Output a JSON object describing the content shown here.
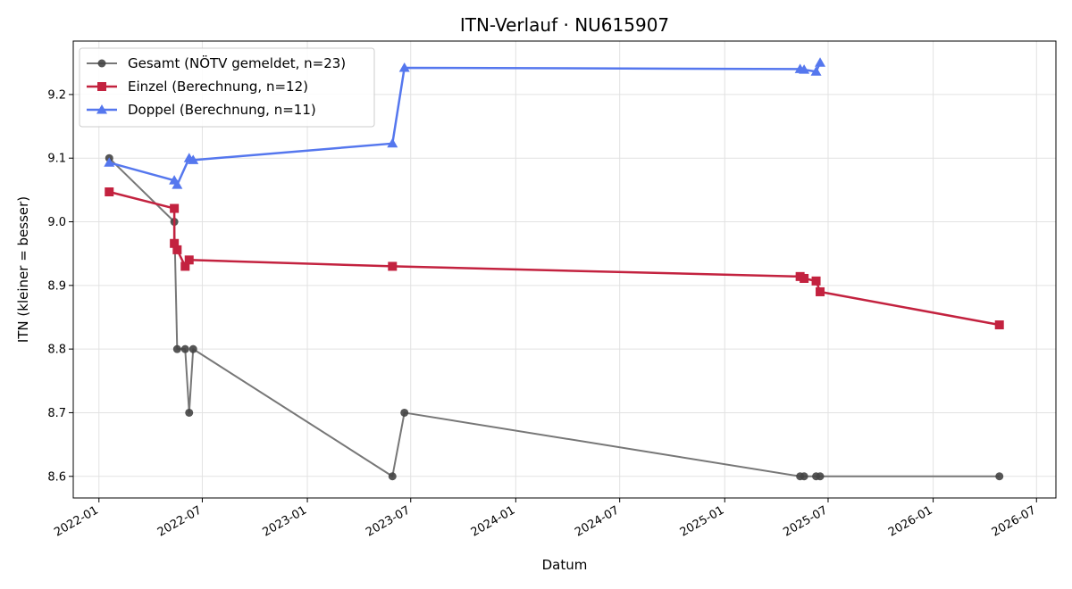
{
  "chart_data": {
    "type": "line",
    "title": "ITN-Verlauf · NU615907",
    "xlabel": "Datum",
    "ylabel": "ITN  (kleiner = besser)",
    "x_type": "date",
    "xlim": [
      "2021-11-17",
      "2026-08-04"
    ],
    "ylim": [
      8.566,
      9.284
    ],
    "x_ticks": [
      "2022-01",
      "2022-07",
      "2023-01",
      "2023-07",
      "2024-01",
      "2024-07",
      "2025-01",
      "2025-07",
      "2026-01",
      "2026-07"
    ],
    "y_ticks": [
      8.6,
      8.7,
      8.8,
      8.9,
      9.0,
      9.1,
      9.2
    ],
    "grid": true,
    "legend_position": "top-left",
    "series": [
      {
        "name": "Gesamt (NÖTV gemeldet, n=23)",
        "color": "#777777",
        "marker_color": "#444444",
        "marker": "circle",
        "points": [
          {
            "x": "2022-01-19",
            "y": 9.1
          },
          {
            "x": "2022-05-13",
            "y": 9.0
          },
          {
            "x": "2022-05-18",
            "y": 8.8
          },
          {
            "x": "2022-06-01",
            "y": 8.8
          },
          {
            "x": "2022-06-08",
            "y": 8.7
          },
          {
            "x": "2022-06-15",
            "y": 8.8
          },
          {
            "x": "2023-05-30",
            "y": 8.6
          },
          {
            "x": "2023-06-20",
            "y": 8.7
          },
          {
            "x": "2025-05-13",
            "y": 8.6
          },
          {
            "x": "2025-05-20",
            "y": 8.6
          },
          {
            "x": "2025-06-10",
            "y": 8.6
          },
          {
            "x": "2025-06-17",
            "y": 8.6
          },
          {
            "x": "2026-04-27",
            "y": 8.6
          }
        ]
      },
      {
        "name": "Einzel (Berechnung, n=12)",
        "color": "#c3223f",
        "marker_color": "#c3223f",
        "marker": "square",
        "points": [
          {
            "x": "2022-01-19",
            "y": 9.047
          },
          {
            "x": "2022-05-13",
            "y": 9.021
          },
          {
            "x": "2022-05-13",
            "y": 8.966
          },
          {
            "x": "2022-05-18",
            "y": 8.956
          },
          {
            "x": "2022-06-01",
            "y": 8.93
          },
          {
            "x": "2022-06-08",
            "y": 8.94
          },
          {
            "x": "2023-05-30",
            "y": 8.93
          },
          {
            "x": "2025-05-13",
            "y": 8.914
          },
          {
            "x": "2025-05-20",
            "y": 8.911
          },
          {
            "x": "2025-06-10",
            "y": 8.907
          },
          {
            "x": "2025-06-17",
            "y": 8.89
          },
          {
            "x": "2026-04-27",
            "y": 8.838
          }
        ]
      },
      {
        "name": "Doppel (Berechnung, n=11)",
        "color": "#5577ee",
        "marker_color": "#5577ee",
        "marker": "triangle",
        "points": [
          {
            "x": "2022-01-19",
            "y": 9.093
          },
          {
            "x": "2022-05-13",
            "y": 9.065
          },
          {
            "x": "2022-05-18",
            "y": 9.058
          },
          {
            "x": "2022-06-08",
            "y": 9.1
          },
          {
            "x": "2022-06-15",
            "y": 9.097
          },
          {
            "x": "2023-05-30",
            "y": 9.123
          },
          {
            "x": "2023-06-20",
            "y": 9.242
          },
          {
            "x": "2025-05-13",
            "y": 9.24
          },
          {
            "x": "2025-05-20",
            "y": 9.239
          },
          {
            "x": "2025-06-10",
            "y": 9.236
          },
          {
            "x": "2025-06-17",
            "y": 9.25
          }
        ]
      }
    ]
  }
}
